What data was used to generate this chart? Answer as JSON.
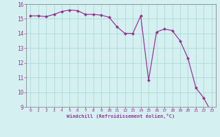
{
  "x": [
    0,
    1,
    2,
    3,
    4,
    5,
    6,
    7,
    8,
    9,
    10,
    11,
    12,
    13,
    14,
    15,
    16,
    17,
    18,
    19,
    20,
    21,
    22,
    23
  ],
  "y": [
    15.2,
    15.2,
    15.15,
    15.3,
    15.5,
    15.6,
    15.55,
    15.3,
    15.3,
    15.25,
    15.1,
    14.45,
    14.0,
    14.0,
    15.2,
    10.8,
    14.1,
    14.3,
    14.2,
    13.5,
    12.3,
    10.3,
    9.6,
    8.6
  ],
  "line_color": "#993399",
  "marker": "D",
  "markersize": 2.0,
  "linewidth": 0.9,
  "bg_color": "#d4f0f0",
  "grid_color": "#b0d8d8",
  "spine_color": "#888888",
  "xlabel": "Windchill (Refroidissement éolien,°C)",
  "tick_color": "#993399",
  "ylim": [
    9,
    16
  ],
  "yticks": [
    9,
    10,
    11,
    12,
    13,
    14,
    15,
    16
  ],
  "xlim": [
    -0.5,
    23.5
  ],
  "xticks": [
    0,
    1,
    2,
    3,
    4,
    5,
    6,
    7,
    8,
    9,
    10,
    11,
    12,
    13,
    14,
    15,
    16,
    17,
    18,
    19,
    20,
    21,
    22,
    23
  ]
}
